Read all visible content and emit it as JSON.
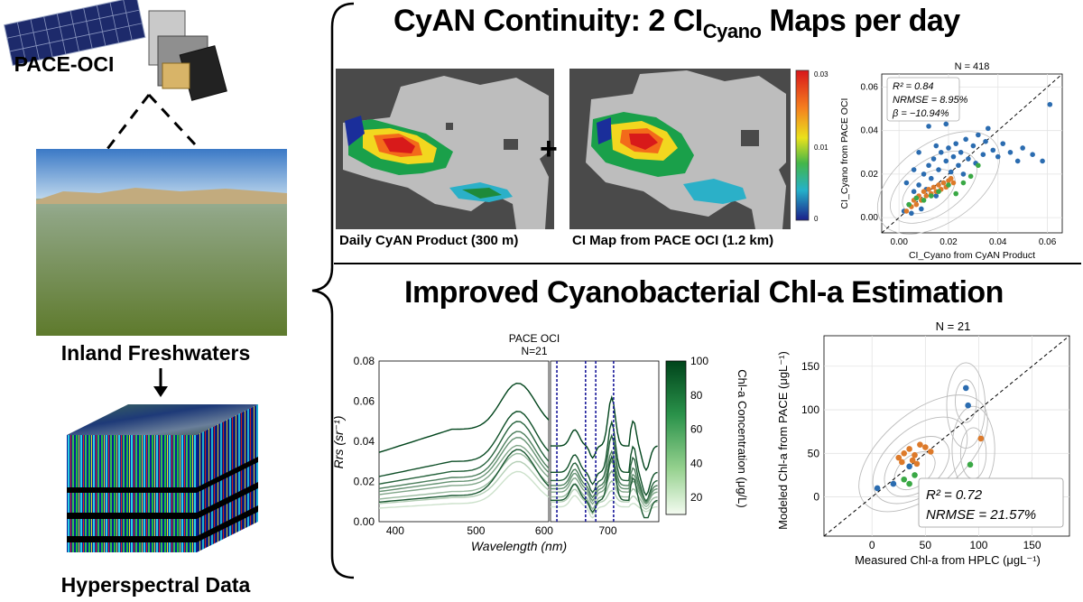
{
  "left": {
    "satellite_label": "PACE-OCI",
    "lake_label": "Inland Freshwaters",
    "cube_label": "Hyperspectral Data"
  },
  "top": {
    "title_main": "CyAN Continuity: 2 CI",
    "title_sub": "Cyano",
    "title_tail": " Maps per day",
    "map1_caption": "Daily CyAN Product (300 m)",
    "map2_caption": "CI Map from PACE OCI (1.2 km)",
    "plus": "+",
    "colorbar_ticks": [
      "0.03",
      "0.01",
      "0"
    ],
    "scatter": {
      "title": "N = 418",
      "stats": [
        "R² = 0.84",
        "NRMSE = 8.95%",
        "β = −10.94%"
      ],
      "xlabel": "CI_Cyano from CyAN Product",
      "ylabel": "CI_Cyano from PACE OCI",
      "xticks": [
        "0.00",
        "0.02",
        "0.04",
        "0.06"
      ],
      "yticks": [
        "0.00",
        "0.02",
        "0.04",
        "0.06"
      ]
    }
  },
  "bottom": {
    "title": "Improved Cyanobacterial Chl-a Estimation",
    "spectra": {
      "title_line1": "PACE OCI",
      "title_line2": "N=21",
      "xlabel": "Wavelength (nm)",
      "ylabel": "Rrs (sr⁻¹)",
      "xticks": [
        "400",
        "500",
        "600",
        "700"
      ],
      "yticks": [
        "0.00",
        "0.02",
        "0.04",
        "0.06",
        "0.08"
      ],
      "colorbar_label": "Chl-a Concentration (μg/L)",
      "colorbar_ticks": [
        "100",
        "80",
        "60",
        "40",
        "20"
      ]
    },
    "scatter": {
      "title": "N = 21",
      "stats": [
        "R² = 0.72",
        "NRMSE = 21.57%"
      ],
      "xlabel": "Measured Chl-a from HPLC (μgL⁻¹)",
      "ylabel": "Modeled Chl-a from PACE (μgL⁻¹)",
      "xticks": [
        "0",
        "50",
        "100",
        "150"
      ],
      "yticks": [
        "0",
        "50",
        "100",
        "150"
      ]
    }
  },
  "chart_data": [
    {
      "type": "scatter",
      "title": "N = 418",
      "xlabel": "CI_Cyano from CyAN Product",
      "ylabel": "CI_Cyano from PACE OCI",
      "xlim": [
        -0.007,
        0.066
      ],
      "ylim": [
        -0.007,
        0.066
      ],
      "series": [
        {
          "name": "blue",
          "color": "#2b6cb0",
          "points": [
            [
              0.002,
              0.003
            ],
            [
              0.004,
              0.006
            ],
            [
              0.005,
              0.002
            ],
            [
              0.006,
              0.012
            ],
            [
              0.007,
              0.009
            ],
            [
              0.008,
              0.015
            ],
            [
              0.009,
              0.004
            ],
            [
              0.01,
              0.02
            ],
            [
              0.011,
              0.013
            ],
            [
              0.012,
              0.024
            ],
            [
              0.013,
              0.018
            ],
            [
              0.014,
              0.027
            ],
            [
              0.015,
              0.01
            ],
            [
              0.016,
              0.022
            ],
            [
              0.017,
              0.03
            ],
            [
              0.018,
              0.016
            ],
            [
              0.019,
              0.026
            ],
            [
              0.02,
              0.032
            ],
            [
              0.021,
              0.021
            ],
            [
              0.022,
              0.028
            ],
            [
              0.023,
              0.034
            ],
            [
              0.024,
              0.024
            ],
            [
              0.025,
              0.03
            ],
            [
              0.026,
              0.02
            ],
            [
              0.027,
              0.036
            ],
            [
              0.028,
              0.027
            ],
            [
              0.03,
              0.033
            ],
            [
              0.031,
              0.025
            ],
            [
              0.032,
              0.038
            ],
            [
              0.034,
              0.029
            ],
            [
              0.035,
              0.035
            ],
            [
              0.036,
              0.041
            ],
            [
              0.038,
              0.031
            ],
            [
              0.04,
              0.028
            ],
            [
              0.042,
              0.034
            ],
            [
              0.045,
              0.03
            ],
            [
              0.048,
              0.026
            ],
            [
              0.05,
              0.032
            ],
            [
              0.054,
              0.029
            ],
            [
              0.058,
              0.026
            ],
            [
              0.061,
              0.052
            ],
            [
              0.012,
              0.042
            ],
            [
              0.008,
              0.03
            ],
            [
              0.019,
              0.043
            ],
            [
              0.003,
              0.016
            ],
            [
              0.015,
              0.033
            ],
            [
              0.006,
              0.022
            ]
          ]
        },
        {
          "name": "orange",
          "color": "#dd7a2a",
          "points": [
            [
              0.003,
              0.003
            ],
            [
              0.005,
              0.005
            ],
            [
              0.006,
              0.008
            ],
            [
              0.007,
              0.006
            ],
            [
              0.008,
              0.01
            ],
            [
              0.009,
              0.008
            ],
            [
              0.01,
              0.012
            ],
            [
              0.011,
              0.01
            ],
            [
              0.012,
              0.013
            ],
            [
              0.013,
              0.011
            ],
            [
              0.014,
              0.014
            ],
            [
              0.015,
              0.012
            ],
            [
              0.016,
              0.015
            ],
            [
              0.017,
              0.013
            ],
            [
              0.018,
              0.016
            ],
            [
              0.019,
              0.014
            ],
            [
              0.02,
              0.017
            ],
            [
              0.021,
              0.018
            ],
            [
              0.022,
              0.016
            ]
          ]
        },
        {
          "name": "green",
          "color": "#3aa845",
          "points": [
            [
              0.004,
              0.006
            ],
            [
              0.007,
              0.009
            ],
            [
              0.01,
              0.008
            ],
            [
              0.013,
              0.01
            ],
            [
              0.016,
              0.012
            ],
            [
              0.02,
              0.015
            ],
            [
              0.023,
              0.011
            ],
            [
              0.026,
              0.016
            ],
            [
              0.029,
              0.019
            ],
            [
              0.032,
              0.024
            ]
          ]
        }
      ],
      "reference_line": "1:1 dashed"
    },
    {
      "type": "line",
      "title": "PACE OCI N=21",
      "xlabel": "Wavelength (nm)",
      "ylabel": "Rrs (sr^-1)",
      "xlim": [
        380,
        780
      ],
      "ylim": [
        0,
        0.08
      ],
      "gap_nm": [
        590,
        610
      ],
      "band_markers_nm": [
        620,
        665,
        681,
        709
      ],
      "colorbar_range": [
        10,
        100
      ],
      "series": [
        {
          "name": "s1",
          "chl": 100,
          "peak": 0.069,
          "base": 0.046
        },
        {
          "name": "s2",
          "chl": 95,
          "peak": 0.055,
          "base": 0.03
        },
        {
          "name": "s3",
          "chl": 85,
          "peak": 0.05,
          "base": 0.025
        },
        {
          "name": "s4",
          "chl": 70,
          "peak": 0.045,
          "base": 0.022
        },
        {
          "name": "s5",
          "chl": 60,
          "peak": 0.042,
          "base": 0.02
        },
        {
          "name": "s6",
          "chl": 50,
          "peak": 0.038,
          "base": 0.018
        },
        {
          "name": "s7",
          "chl": 40,
          "peak": 0.034,
          "base": 0.015
        },
        {
          "name": "s8",
          "chl": 30,
          "peak": 0.03,
          "base": 0.012
        },
        {
          "name": "s9",
          "chl": 20,
          "peak": 0.025,
          "base": 0.009
        },
        {
          "name": "s10",
          "chl": 90,
          "peak": 0.036,
          "base": 0.013
        }
      ]
    },
    {
      "type": "scatter",
      "title": "N = 21",
      "xlabel": "Measured Chl-a from HPLC (μgL⁻¹)",
      "ylabel": "Modeled Chl-a from PACE (μgL⁻¹)",
      "xlim": [
        -45,
        185
      ],
      "ylim": [
        -45,
        185
      ],
      "series": [
        {
          "name": "orange",
          "color": "#dd7a2a",
          "points": [
            [
              25,
              45
            ],
            [
              30,
              50
            ],
            [
              35,
              55
            ],
            [
              40,
              48
            ],
            [
              45,
              60
            ],
            [
              50,
              57
            ],
            [
              28,
              40
            ],
            [
              38,
              42
            ],
            [
              55,
              52
            ],
            [
              42,
              38
            ],
            [
              102,
              67
            ]
          ]
        },
        {
          "name": "green",
          "color": "#3aa845",
          "points": [
            [
              30,
              20
            ],
            [
              40,
              25
            ],
            [
              48,
              18
            ],
            [
              35,
              15
            ],
            [
              92,
              37
            ]
          ]
        },
        {
          "name": "blue",
          "color": "#2b6cb0",
          "points": [
            [
              20,
              15
            ],
            [
              35,
              35
            ],
            [
              88,
              125
            ],
            [
              5,
              10
            ],
            [
              90,
              105
            ]
          ]
        }
      ],
      "reference_line": "1:1 dashed"
    }
  ]
}
